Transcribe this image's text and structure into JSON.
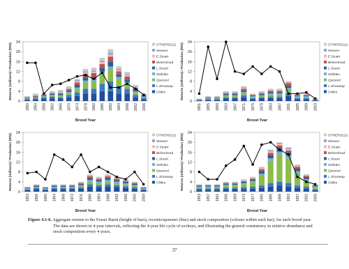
{
  "chart_data": [
    {
      "type": "bar",
      "stacked": true,
      "x_label": "Brood Year",
      "y_label": "Returns (millions) / Production (R/S)",
      "categories": [
        "1950",
        "1954",
        "1958",
        "1962",
        "1966",
        "1970",
        "1974",
        "1978",
        "1982",
        "1986",
        "1990",
        "1994",
        "1998",
        "2002",
        "2006"
      ],
      "ylim": [
        0,
        24
      ],
      "yticks": [
        0,
        4,
        8,
        12,
        16,
        20,
        24
      ],
      "series": [
        {
          "name": "Chilko",
          "color": "#1f4e9c",
          "values": [
            0.5,
            0.8,
            1,
            1,
            1,
            1.5,
            2,
            3,
            3,
            4,
            4,
            3,
            3,
            1.5,
            0.8
          ]
        },
        {
          "name": "L.Shuswap",
          "color": "#3c78c0",
          "values": [
            0.3,
            0.3,
            0.5,
            0.8,
            0.5,
            1,
            1.5,
            2,
            2,
            3,
            4,
            3,
            2,
            1,
            0.5
          ]
        },
        {
          "name": "Quesnel",
          "color": "#8dbb4c",
          "values": [
            0.1,
            0.2,
            0.3,
            0.4,
            0.5,
            0.8,
            1.5,
            2.5,
            3,
            4,
            5,
            3,
            2,
            1,
            0.3
          ]
        },
        {
          "name": "Stellako",
          "color": "#6fb0d8",
          "values": [
            0.2,
            0.2,
            0.2,
            0.3,
            0.3,
            0.4,
            0.5,
            0.8,
            0.8,
            1,
            1,
            0.8,
            0.7,
            0.4,
            0.2
          ]
        },
        {
          "name": "L.Stuart",
          "color": "#2e5f8a",
          "values": [
            0.2,
            0.3,
            0.3,
            0.4,
            0.5,
            0.6,
            1,
            1.2,
            1,
            1.5,
            2,
            1,
            1,
            0.6,
            0.3
          ]
        },
        {
          "name": "Birkenhead",
          "color": "#c0504d",
          "values": [
            0.2,
            0.3,
            0.2,
            0.3,
            0.4,
            0.5,
            1,
            1.5,
            1.5,
            1.5,
            2,
            1.2,
            1.2,
            0.8,
            0.3
          ]
        },
        {
          "name": "E.Stuart",
          "color": "#f2b8b0",
          "values": [
            0.1,
            0.2,
            0.2,
            0.2,
            0.3,
            0.3,
            0.5,
            0.5,
            0.5,
            0.8,
            0.8,
            0.5,
            0.5,
            0.3,
            0.2
          ]
        },
        {
          "name": "Weaver",
          "color": "#8fa6d4",
          "values": [
            0.1,
            0.2,
            0.1,
            0.2,
            0.3,
            0.3,
            0.5,
            0.5,
            0.5,
            0.5,
            0.8,
            0.5,
            0.4,
            0.2,
            0.1
          ]
        },
        {
          "name": "OTHERS(11)",
          "color": "#c8c8c8",
          "values": [
            0.3,
            0.5,
            0.2,
            0.4,
            0.7,
            0.6,
            0.5,
            1,
            1.2,
            1.2,
            1.4,
            1,
            1,
            0.7,
            0.3
          ]
        }
      ],
      "line": {
        "color": "#000000",
        "values": [
          15.5,
          15.5,
          3,
          6.5,
          7,
          8.5,
          10,
          10.5,
          9,
          11.5,
          5.5,
          5.5,
          7,
          5,
          2.5
        ]
      }
    },
    {
      "type": "bar",
      "stacked": true,
      "x_label": "Brood Year",
      "y_label": "Returns (millions) / Production (R/S)",
      "categories": [
        "1951",
        "1955",
        "1959",
        "1963",
        "1967",
        "1971",
        "1975",
        "1979",
        "1983",
        "1987",
        "1991",
        "1995",
        "1999",
        "2003"
      ],
      "ylim": [
        0,
        24
      ],
      "yticks": [
        0,
        4,
        8,
        12,
        16,
        20,
        24
      ],
      "series": [
        {
          "name": "Chilko",
          "color": "#1f4e9c",
          "values": [
            0.3,
            0.5,
            0.5,
            1,
            1,
            1.5,
            0.8,
            1,
            1.2,
            1.2,
            2,
            0.8,
            0.8,
            0.3
          ]
        },
        {
          "name": "L.Shuswap",
          "color": "#3c78c0",
          "values": [
            0.1,
            0.2,
            0.2,
            0.5,
            0.5,
            0.8,
            0.4,
            0.5,
            0.6,
            0.6,
            1,
            0.4,
            0.4,
            0.1
          ]
        },
        {
          "name": "Quesnel",
          "color": "#8dbb4c",
          "values": [
            0.1,
            0.2,
            0.2,
            0.5,
            0.5,
            0.8,
            0.4,
            0.5,
            0.8,
            0.8,
            1.5,
            0.4,
            0.4,
            0.1
          ]
        },
        {
          "name": "Stellako",
          "color": "#6fb0d8",
          "values": [
            0.1,
            0.2,
            0.2,
            0.4,
            0.4,
            0.6,
            0.3,
            0.4,
            0.5,
            0.5,
            0.8,
            0.3,
            0.3,
            0.1
          ]
        },
        {
          "name": "L.Stuart",
          "color": "#2e5f8a",
          "values": [
            0.1,
            0.2,
            0.2,
            0.4,
            0.4,
            0.6,
            0.3,
            0.4,
            0.5,
            0.5,
            0.8,
            0.3,
            0.3,
            0.1
          ]
        },
        {
          "name": "Birkenhead",
          "color": "#c0504d",
          "values": [
            0.1,
            0.2,
            0.2,
            0.4,
            0.4,
            0.7,
            0.3,
            0.4,
            0.5,
            0.5,
            1.2,
            0.3,
            0.3,
            0.1
          ]
        },
        {
          "name": "E.Stuart",
          "color": "#f2b8b0",
          "values": [
            0.1,
            0.1,
            0.1,
            0.2,
            0.2,
            0.3,
            0.2,
            0.2,
            0.3,
            0.3,
            0.3,
            0.2,
            0.2,
            0.1
          ]
        },
        {
          "name": "Weaver",
          "color": "#8fa6d4",
          "values": [
            0,
            0.1,
            0.1,
            0.2,
            0.2,
            0.3,
            0.1,
            0.2,
            0.2,
            0.2,
            0.2,
            0.1,
            0.1,
            0
          ]
        },
        {
          "name": "OTHERS(11)",
          "color": "#c8c8c8",
          "values": [
            0.1,
            0.3,
            0.3,
            0.4,
            0.4,
            0.4,
            0.2,
            0.4,
            0.4,
            0.4,
            0.2,
            0.2,
            0.2,
            0.1
          ]
        }
      ],
      "line": {
        "color": "#000000",
        "values": [
          3,
          22,
          9,
          24,
          12,
          11,
          14,
          11,
          14,
          12,
          3,
          3,
          3.5,
          1
        ]
      }
    },
    {
      "type": "bar",
      "stacked": true,
      "x_label": "Brood Year",
      "y_label": "Returns (millions) / Production (R/S)",
      "categories": [
        "1952",
        "1956",
        "1960",
        "1964",
        "1968",
        "1972",
        "1976",
        "1980",
        "1984",
        "1988",
        "1992",
        "1996",
        "2000",
        "2004"
      ],
      "ylim": [
        0,
        24
      ],
      "yticks": [
        0,
        4,
        8,
        12,
        16,
        20,
        24
      ],
      "series": [
        {
          "name": "Chilko",
          "color": "#1f4e9c",
          "values": [
            0.6,
            1,
            0.6,
            1,
            1,
            1,
            1.2,
            2,
            1.8,
            2,
            1.8,
            1.5,
            1.2,
            0.6
          ]
        },
        {
          "name": "L.Shuswap",
          "color": "#3c78c0",
          "values": [
            0.3,
            0.4,
            0.3,
            0.4,
            0.4,
            0.4,
            0.5,
            1,
            0.8,
            1,
            0.8,
            0.7,
            0.5,
            0.3
          ]
        },
        {
          "name": "Quesnel",
          "color": "#8dbb4c",
          "values": [
            0.2,
            0.3,
            0.2,
            0.3,
            0.3,
            0.3,
            0.5,
            1,
            0.9,
            1,
            0.9,
            0.7,
            0.6,
            0.2
          ]
        },
        {
          "name": "Stellako",
          "color": "#6fb0d8",
          "values": [
            0.2,
            0.3,
            0.2,
            0.3,
            0.3,
            0.3,
            0.4,
            0.8,
            0.6,
            0.8,
            0.6,
            0.5,
            0.4,
            0.2
          ]
        },
        {
          "name": "L.Stuart",
          "color": "#2e5f8a",
          "values": [
            0.2,
            0.3,
            0.2,
            0.3,
            0.3,
            0.3,
            0.4,
            0.8,
            0.6,
            0.8,
            0.6,
            0.5,
            0.4,
            0.2
          ]
        },
        {
          "name": "Birkenhead",
          "color": "#c0504d",
          "values": [
            0.2,
            0.3,
            0.2,
            0.3,
            0.3,
            0.3,
            0.4,
            0.6,
            0.5,
            0.6,
            0.5,
            0.4,
            0.4,
            0.2
          ]
        },
        {
          "name": "E.Stuart",
          "color": "#f2b8b0",
          "values": [
            0.1,
            0.1,
            0.1,
            0.2,
            0.2,
            0.2,
            0.2,
            0.3,
            0.3,
            0.3,
            0.3,
            0.3,
            0.2,
            0.1
          ]
        },
        {
          "name": "Weaver",
          "color": "#8fa6d4",
          "values": [
            0.1,
            0.1,
            0.1,
            0.1,
            0.1,
            0.1,
            0.2,
            0.2,
            0.2,
            0.2,
            0.2,
            0.2,
            0.1,
            0.1
          ]
        },
        {
          "name": "OTHERS(11)",
          "color": "#c8c8c8",
          "values": [
            0.1,
            0.2,
            0.1,
            0.1,
            0.1,
            0.1,
            0.2,
            0.3,
            0.3,
            0.3,
            0.3,
            0.2,
            0.2,
            0.1
          ]
        }
      ],
      "line": {
        "color": "#000000",
        "values": [
          7.5,
          8,
          5,
          15,
          13,
          10,
          15,
          8,
          10,
          8,
          6,
          5,
          8,
          3
        ]
      }
    },
    {
      "type": "bar",
      "stacked": true,
      "x_label": "Brood Year",
      "y_label": "Returns (millions) / Production (R/S)",
      "categories": [
        "1953",
        "1957",
        "1961",
        "1965",
        "1969",
        "1973",
        "1977",
        "1981",
        "1985",
        "1989",
        "1993",
        "1997",
        "2001",
        "2005"
      ],
      "ylim": [
        0,
        24
      ],
      "yticks": [
        0,
        4,
        8,
        12,
        16,
        20,
        24
      ],
      "series": [
        {
          "name": "Chilko",
          "color": "#1f4e9c",
          "values": [
            0.8,
            0.8,
            0.8,
            1,
            1,
            1,
            1.2,
            1.5,
            2,
            2.5,
            2,
            1.5,
            1.2,
            0.6
          ]
        },
        {
          "name": "L.Shuswap",
          "color": "#3c78c0",
          "values": [
            0.5,
            0.5,
            0.5,
            0.6,
            0.6,
            0.8,
            0.8,
            1,
            1.5,
            1.5,
            1.5,
            1,
            0.8,
            0.4
          ]
        },
        {
          "name": "Quesnel",
          "color": "#8dbb4c",
          "values": [
            0.5,
            0.5,
            0.5,
            0.8,
            0.8,
            1.2,
            1.8,
            4,
            9,
            11,
            10,
            5,
            2.5,
            0.8
          ]
        },
        {
          "name": "Stellako",
          "color": "#6fb0d8",
          "values": [
            0.3,
            0.3,
            0.3,
            0.4,
            0.4,
            0.5,
            0.5,
            0.8,
            1,
            1.2,
            1.2,
            0.8,
            0.6,
            0.3
          ]
        },
        {
          "name": "L.Stuart",
          "color": "#2e5f8a",
          "values": [
            0.3,
            0.3,
            0.3,
            0.4,
            0.4,
            0.5,
            0.5,
            1,
            1.2,
            1.5,
            1.2,
            1,
            0.8,
            0.3
          ]
        },
        {
          "name": "Birkenhead",
          "color": "#c0504d",
          "values": [
            0.2,
            0.2,
            0.2,
            0.3,
            0.3,
            0.3,
            0.4,
            0.8,
            1,
            1,
            0.8,
            0.8,
            0.5,
            0.2
          ]
        },
        {
          "name": "E.Stuart",
          "color": "#f2b8b0",
          "values": [
            0.1,
            0.1,
            0.1,
            0.2,
            0.2,
            0.2,
            0.3,
            0.4,
            0.6,
            0.6,
            0.6,
            0.4,
            0.3,
            0.2
          ]
        },
        {
          "name": "Weaver",
          "color": "#8fa6d4",
          "values": [
            0.1,
            0.1,
            0.1,
            0.1,
            0.1,
            0.2,
            0.2,
            0.3,
            0.5,
            0.5,
            0.5,
            0.3,
            0.2,
            0.1
          ]
        },
        {
          "name": "OTHERS(11)",
          "color": "#c8c8c8",
          "values": [
            0.2,
            0.2,
            0.2,
            0.2,
            0.2,
            0.3,
            0.3,
            0.2,
            0.2,
            0.2,
            0.2,
            0.2,
            0.1,
            0.1
          ]
        }
      ],
      "line": {
        "color": "#000000",
        "values": [
          8,
          5,
          5,
          10.5,
          13,
          18.5,
          11,
          19,
          20,
          17,
          15,
          6,
          4,
          3
        ]
      }
    }
  ],
  "caption_label": "Figure 4.1-6.",
  "caption_lines": [
    " Aggregate returns to the Fraser Basin (height of bars), recruits/spawner (line) and stock composition (colours within each bar), for each brood year.",
    "The data are shown in 4-year intervals, reflecting the 4-year life cycle of sockeye, and illustrating the general consistency in relative abundance and",
    "stock composition every 4 years."
  ],
  "page_number": "37"
}
